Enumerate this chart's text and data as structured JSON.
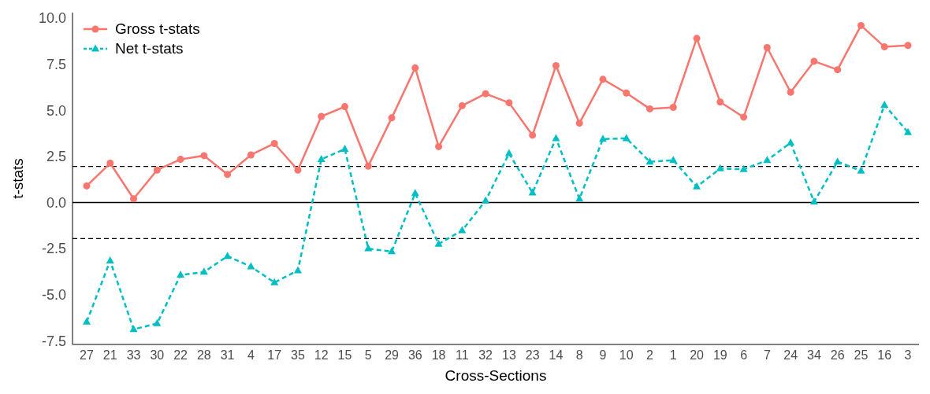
{
  "chart_data": {
    "type": "line",
    "xlabel": "Cross-Sections",
    "ylabel": "t-stats",
    "categories": [
      "27",
      "21",
      "33",
      "30",
      "22",
      "28",
      "31",
      "4",
      "17",
      "35",
      "12",
      "15",
      "5",
      "29",
      "36",
      "18",
      "11",
      "32",
      "13",
      "23",
      "14",
      "8",
      "9",
      "10",
      "2",
      "1",
      "20",
      "19",
      "6",
      "7",
      "24",
      "34",
      "26",
      "25",
      "16",
      "3"
    ],
    "series": [
      {
        "name": "Gross t-stats",
        "color": "#f8766d",
        "marker": "circle",
        "line_style": "solid",
        "values": [
          0.9,
          2.13,
          0.2,
          1.76,
          2.34,
          2.54,
          1.52,
          2.58,
          3.2,
          1.76,
          4.67,
          5.2,
          1.97,
          4.59,
          7.3,
          3.03,
          5.25,
          5.9,
          5.41,
          3.65,
          7.42,
          4.3,
          6.68,
          5.94,
          5.08,
          5.16,
          8.9,
          5.45,
          4.63,
          8.4,
          5.98,
          7.66,
          7.2,
          9.6,
          8.44,
          8.52
        ]
      },
      {
        "name": "Net t-stats",
        "color": "#00bfc4",
        "marker": "triangle",
        "line_style": "dashed",
        "values": [
          -6.47,
          -3.16,
          -6.88,
          -6.56,
          -3.93,
          -3.77,
          -2.91,
          -3.48,
          -4.34,
          -3.69,
          2.34,
          2.9,
          -2.5,
          -2.66,
          0.5,
          -2.25,
          -1.52,
          0.1,
          2.66,
          0.53,
          3.48,
          0.2,
          3.44,
          3.48,
          2.21,
          2.29,
          0.86,
          1.84,
          1.8,
          2.29,
          3.24,
          0.04,
          2.21,
          1.72,
          5.29,
          3.81
        ]
      }
    ],
    "ylim": [
      -7.7,
      10.3
    ],
    "yticks": [
      {
        "value": -7.5,
        "label": "-7.5"
      },
      {
        "value": -5,
        "label": "-5.0"
      },
      {
        "value": -2.5,
        "label": "-2.5"
      },
      {
        "value": 0,
        "label": "0.0"
      },
      {
        "value": 2.5,
        "label": "2.5"
      },
      {
        "value": 5,
        "label": "5.0"
      },
      {
        "value": 7.5,
        "label": "7.5"
      },
      {
        "value": 10,
        "label": "10.0"
      }
    ],
    "ref_lines": [
      {
        "axis": "y",
        "value": 1.96,
        "color": "#000000",
        "line_style": "dashed"
      },
      {
        "axis": "y",
        "value": 0,
        "color": "#000000",
        "line_style": "solid"
      },
      {
        "axis": "y",
        "value": -1.96,
        "color": "#000000",
        "line_style": "dashed"
      }
    ],
    "grid": false,
    "legend": "top left"
  }
}
